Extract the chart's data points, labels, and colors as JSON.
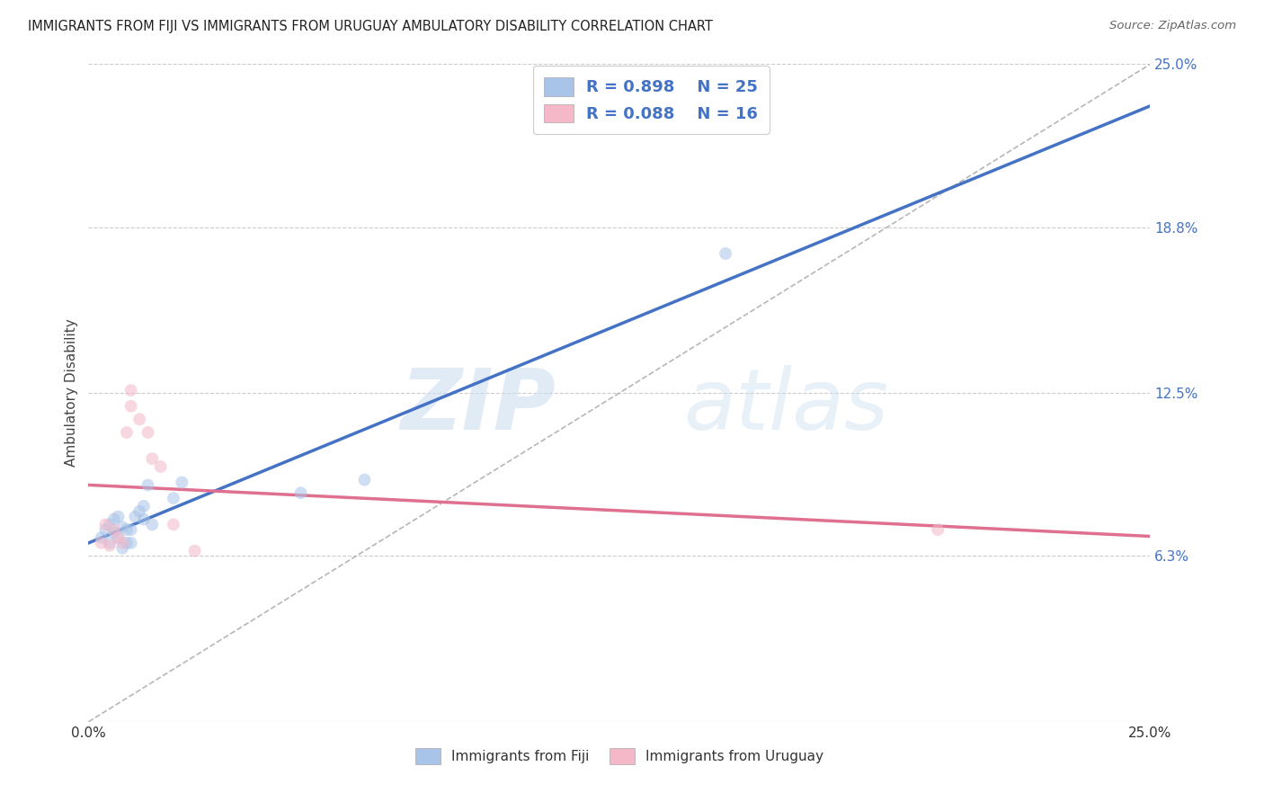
{
  "title": "IMMIGRANTS FROM FIJI VS IMMIGRANTS FROM URUGUAY AMBULATORY DISABILITY CORRELATION CHART",
  "source": "Source: ZipAtlas.com",
  "ylabel": "Ambulatory Disability",
  "xlim": [
    0.0,
    0.25
  ],
  "ylim": [
    0.0,
    0.25
  ],
  "ytick_labels": [
    "6.3%",
    "12.5%",
    "18.8%",
    "25.0%"
  ],
  "ytick_values": [
    0.063,
    0.125,
    0.188,
    0.25
  ],
  "grid_color": "#cccccc",
  "background_color": "#ffffff",
  "fiji_color": "#a8c4e8",
  "fiji_line_color": "#4472c4",
  "uruguay_color": "#f4b8c8",
  "uruguay_line_color": "#e07090",
  "fiji_R": 0.898,
  "fiji_N": 25,
  "uruguay_R": 0.088,
  "uruguay_N": 16,
  "fiji_scatter_x": [
    0.003,
    0.004,
    0.005,
    0.005,
    0.006,
    0.006,
    0.007,
    0.007,
    0.008,
    0.008,
    0.009,
    0.009,
    0.01,
    0.01,
    0.011,
    0.012,
    0.013,
    0.013,
    0.014,
    0.015,
    0.02,
    0.022,
    0.05,
    0.065,
    0.15
  ],
  "fiji_scatter_y": [
    0.07,
    0.073,
    0.068,
    0.075,
    0.072,
    0.077,
    0.07,
    0.078,
    0.066,
    0.074,
    0.068,
    0.073,
    0.068,
    0.073,
    0.078,
    0.08,
    0.077,
    0.082,
    0.09,
    0.075,
    0.085,
    0.091,
    0.087,
    0.092,
    0.178
  ],
  "uruguay_scatter_x": [
    0.003,
    0.004,
    0.005,
    0.006,
    0.007,
    0.008,
    0.009,
    0.01,
    0.01,
    0.012,
    0.014,
    0.015,
    0.017,
    0.02,
    0.025,
    0.2
  ],
  "uruguay_scatter_y": [
    0.068,
    0.075,
    0.067,
    0.073,
    0.07,
    0.068,
    0.11,
    0.12,
    0.126,
    0.115,
    0.11,
    0.1,
    0.097,
    0.075,
    0.065,
    0.073
  ],
  "watermark_zip": "ZIP",
  "watermark_atlas": "atlas",
  "diagonal_line_color": "#aaaaaa",
  "marker_size": 100,
  "marker_alpha": 0.55,
  "line_width": 2.5,
  "fiji_legend_label": "Immigrants from Fiji",
  "uruguay_legend_label": "Immigrants from Uruguay"
}
